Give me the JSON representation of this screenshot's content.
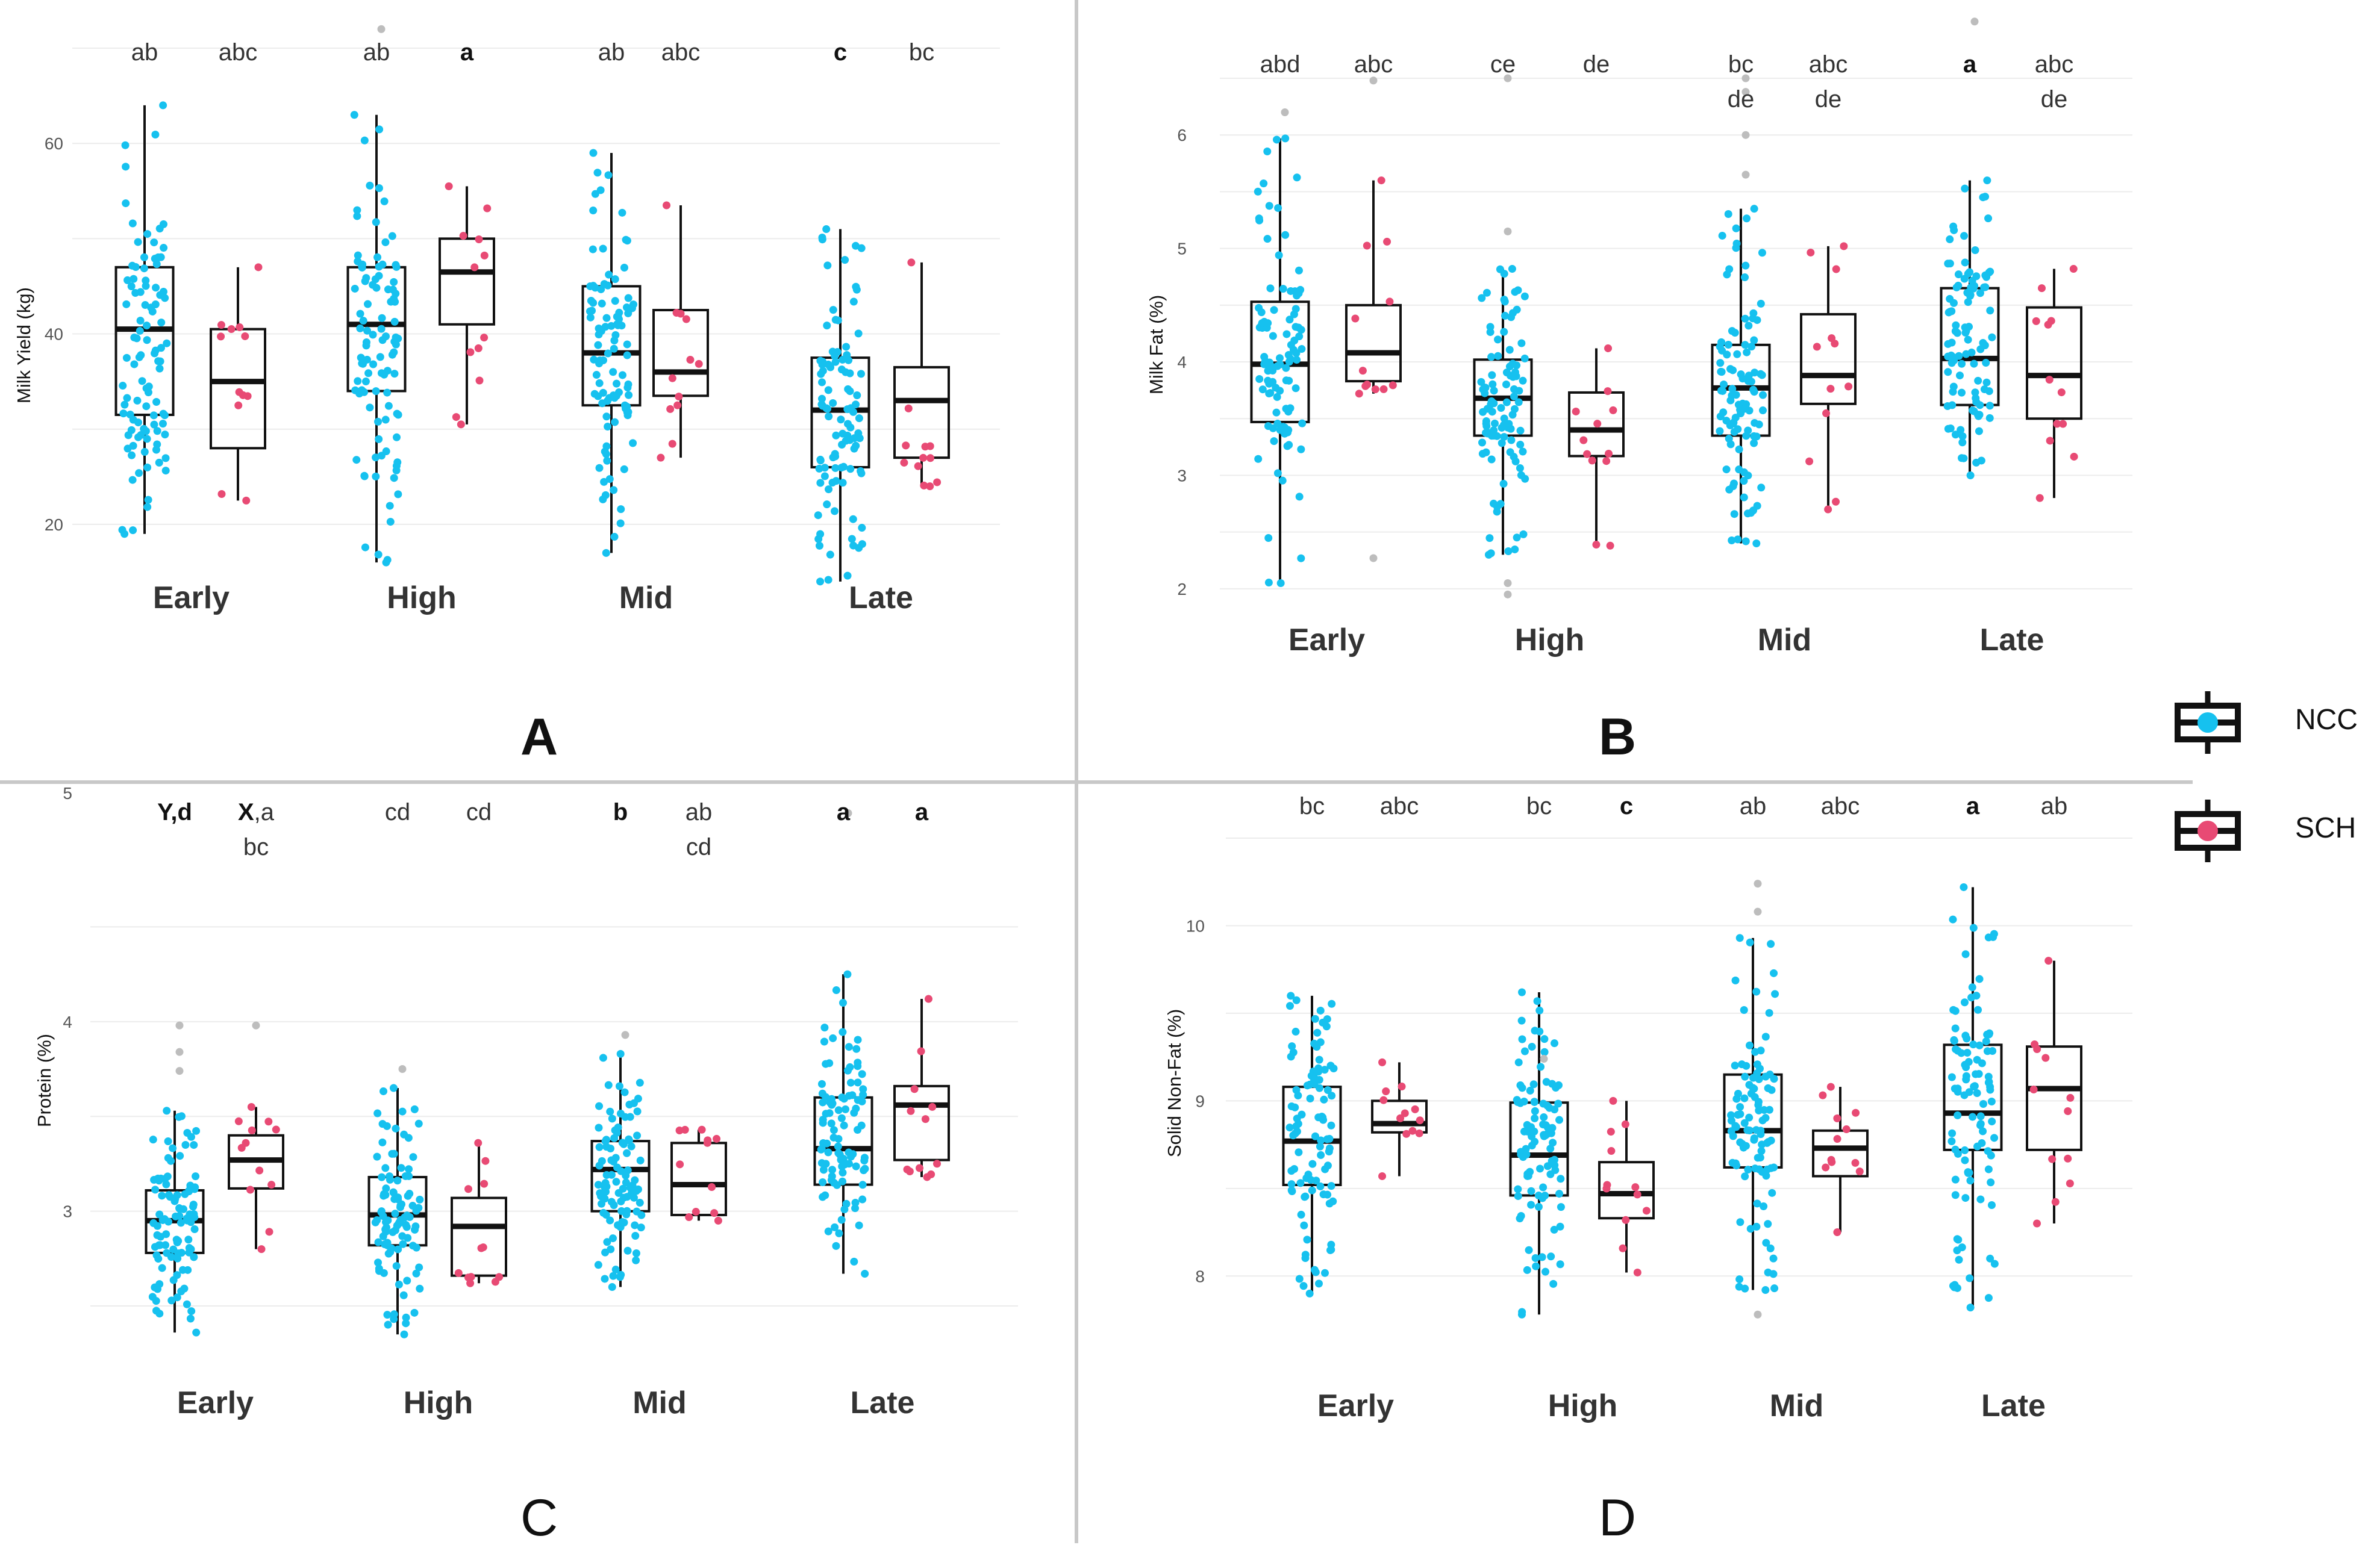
{
  "legend": {
    "items": [
      {
        "name": "NCC",
        "color": "#16c1ef"
      },
      {
        "name": "SCH",
        "color": "#e84a74"
      }
    ]
  },
  "colors": {
    "ncc": "#16c1ef",
    "sch": "#e84a74",
    "outlier": "#bdbdbd",
    "grid": "#ececec",
    "box": "#111111"
  },
  "chart_data": [
    {
      "panel": "A",
      "type": "boxplot",
      "ylabel": "Milk Yield (kg)",
      "ylim": [
        15,
        70
      ],
      "yticks": [
        20,
        40,
        60
      ],
      "categories": [
        "Early",
        "High",
        "Mid",
        "Late"
      ],
      "series": [
        {
          "name": "NCC",
          "boxes": [
            {
              "min": 19,
              "q1": 31.5,
              "median": 40.5,
              "q3": 47,
              "max": 64
            },
            {
              "min": 16,
              "q1": 34,
              "median": 41,
              "q3": 47,
              "max": 63
            },
            {
              "min": 17,
              "q1": 32.5,
              "median": 38,
              "q3": 45,
              "max": 59
            },
            {
              "min": 14,
              "q1": 26,
              "median": 32,
              "q3": 37.5,
              "max": 51
            }
          ]
        },
        {
          "name": "SCH",
          "boxes": [
            {
              "min": 22.5,
              "q1": 28,
              "median": 35,
              "q3": 40.5,
              "max": 47
            },
            {
              "min": 30.5,
              "q1": 41,
              "median": 46.5,
              "q3": 50,
              "max": 55.5
            },
            {
              "min": 27,
              "q1": 33.5,
              "median": 36,
              "q3": 42.5,
              "max": 53.5
            },
            {
              "min": 24,
              "q1": 27,
              "median": 33,
              "q3": 36.5,
              "max": 47.5
            }
          ]
        }
      ],
      "outliers": [
        {
          "category": "High",
          "series": "NCC",
          "value": 72
        }
      ],
      "letters": [
        [
          {
            "t": "ab",
            "b": ""
          },
          {
            "t": "abc",
            "b": ""
          }
        ],
        [
          {
            "t": "ab",
            "b": ""
          },
          {
            "t": "",
            "b": "a"
          }
        ],
        [
          {
            "t": "ab",
            "b": ""
          },
          {
            "t": "abc",
            "b": ""
          }
        ],
        [
          {
            "t": "",
            "b": "c"
          },
          {
            "t": "bc",
            "b": ""
          }
        ]
      ]
    },
    {
      "panel": "B",
      "type": "boxplot",
      "ylabel": "Milk Fat (%)",
      "ylim": [
        1.75,
        6.5
      ],
      "yticks": [
        2,
        3,
        4,
        5,
        6
      ],
      "categories": [
        "Early",
        "High",
        "Mid",
        "Late"
      ],
      "series": [
        {
          "name": "NCC",
          "boxes": [
            {
              "min": 2.05,
              "q1": 3.47,
              "median": 3.98,
              "q3": 4.53,
              "max": 5.97
            },
            {
              "min": 2.3,
              "q1": 3.35,
              "median": 3.68,
              "q3": 4.02,
              "max": 4.82
            },
            {
              "min": 2.4,
              "q1": 3.35,
              "median": 3.77,
              "q3": 4.15,
              "max": 5.35
            },
            {
              "min": 3.0,
              "q1": 3.62,
              "median": 4.03,
              "q3": 4.65,
              "max": 5.6
            }
          ]
        },
        {
          "name": "SCH",
          "boxes": [
            {
              "min": 3.72,
              "q1": 3.83,
              "median": 4.08,
              "q3": 4.5,
              "max": 5.6
            },
            {
              "min": 2.38,
              "q1": 3.17,
              "median": 3.4,
              "q3": 3.73,
              "max": 4.12
            },
            {
              "min": 2.7,
              "q1": 3.63,
              "median": 3.88,
              "q3": 4.42,
              "max": 5.02
            },
            {
              "min": 2.8,
              "q1": 3.5,
              "median": 3.88,
              "q3": 4.48,
              "max": 4.82
            }
          ]
        }
      ],
      "outliers": [
        {
          "category": "Early",
          "series": "NCC",
          "value": 6.2
        },
        {
          "category": "Early",
          "series": "SCH",
          "value": 6.48
        },
        {
          "category": "Early",
          "series": "SCH",
          "value": 2.27
        },
        {
          "category": "High",
          "series": "NCC",
          "value": 6.5
        },
        {
          "category": "High",
          "series": "NCC",
          "value": 5.15
        },
        {
          "category": "High",
          "series": "NCC",
          "value": 2.05
        },
        {
          "category": "High",
          "series": "NCC",
          "value": 1.95
        },
        {
          "category": "Mid",
          "series": "NCC",
          "value": 6.5
        },
        {
          "category": "Mid",
          "series": "NCC",
          "value": 6.38
        },
        {
          "category": "Mid",
          "series": "NCC",
          "value": 6.0
        },
        {
          "category": "Mid",
          "series": "NCC",
          "value": 5.65
        },
        {
          "category": "Late",
          "series": "NCC",
          "value": 7.0
        }
      ],
      "letters": [
        [
          {
            "t": "abd",
            "b": ""
          },
          {
            "t": "abc",
            "b": ""
          }
        ],
        [
          {
            "t": "ce",
            "b": ""
          },
          {
            "t": "de",
            "b": ""
          }
        ],
        [
          {
            "t": "bc\nde",
            "b": ""
          },
          {
            "t": "abc\nde",
            "b": ""
          }
        ],
        [
          {
            "t": "",
            "b": "a"
          },
          {
            "t": "abc\nde",
            "b": ""
          }
        ]
      ]
    },
    {
      "panel": "C",
      "type": "boxplot",
      "ylabel": "Protein (%)",
      "ylim": [
        2.3,
        5.0
      ],
      "yticks": [
        3,
        4
      ],
      "top_tick_label": "5",
      "categories": [
        "Early",
        "High",
        "Mid",
        "Late"
      ],
      "series": [
        {
          "name": "NCC",
          "boxes": [
            {
              "min": 2.36,
              "q1": 2.78,
              "median": 2.95,
              "q3": 3.11,
              "max": 3.53
            },
            {
              "min": 2.35,
              "q1": 2.82,
              "median": 2.98,
              "q3": 3.18,
              "max": 3.65
            },
            {
              "min": 2.6,
              "q1": 3.0,
              "median": 3.22,
              "q3": 3.37,
              "max": 3.83
            },
            {
              "min": 2.67,
              "q1": 3.14,
              "median": 3.33,
              "q3": 3.6,
              "max": 4.25
            }
          ]
        },
        {
          "name": "SCH",
          "boxes": [
            {
              "min": 2.8,
              "q1": 3.12,
              "median": 3.27,
              "q3": 3.4,
              "max": 3.55
            },
            {
              "min": 2.62,
              "q1": 2.66,
              "median": 2.92,
              "q3": 3.07,
              "max": 3.36
            },
            {
              "min": 2.95,
              "q1": 2.98,
              "median": 3.14,
              "q3": 3.36,
              "max": 3.43
            },
            {
              "min": 3.18,
              "q1": 3.27,
              "median": 3.56,
              "q3": 3.66,
              "max": 4.12
            }
          ]
        }
      ],
      "outliers": [
        {
          "category": "Early",
          "series": "NCC",
          "value": 3.98
        },
        {
          "category": "Early",
          "series": "NCC",
          "value": 3.84
        },
        {
          "category": "Early",
          "series": "NCC",
          "value": 3.74
        },
        {
          "category": "Early",
          "series": "SCH",
          "value": 3.98
        },
        {
          "category": "High",
          "series": "NCC",
          "value": 3.75
        },
        {
          "category": "Mid",
          "series": "NCC",
          "value": 3.93
        },
        {
          "category": "Late",
          "series": "NCC",
          "value": 5.1
        }
      ],
      "letters": [
        [
          {
            "t": "",
            "b": "Y,d"
          },
          {
            "t": ",a\nbc",
            "b": "X"
          }
        ],
        [
          {
            "t": "cd",
            "b": ""
          },
          {
            "t": "cd",
            "b": ""
          }
        ],
        [
          {
            "t": "",
            "b": "b"
          },
          {
            "t": "ab\ncd",
            "b": ""
          }
        ],
        [
          {
            "t": "",
            "b": "a"
          },
          {
            "t": "",
            "b": "a"
          }
        ]
      ]
    },
    {
      "panel": "D",
      "type": "boxplot",
      "ylabel": "Solid Non-Fat (%)",
      "ylim": [
        7.75,
        10.5
      ],
      "yticks": [
        8,
        9,
        10
      ],
      "categories": [
        "Early",
        "High",
        "Mid",
        "Late"
      ],
      "series": [
        {
          "name": "NCC",
          "boxes": [
            {
              "min": 7.9,
              "q1": 8.52,
              "median": 8.77,
              "q3": 9.08,
              "max": 9.6
            },
            {
              "min": 7.78,
              "q1": 8.46,
              "median": 8.69,
              "q3": 8.99,
              "max": 9.62
            },
            {
              "min": 7.92,
              "q1": 8.62,
              "median": 8.83,
              "q3": 9.15,
              "max": 9.93
            },
            {
              "min": 7.82,
              "q1": 8.72,
              "median": 8.93,
              "q3": 9.32,
              "max": 10.22
            }
          ]
        },
        {
          "name": "SCH",
          "boxes": [
            {
              "min": 8.57,
              "q1": 8.82,
              "median": 8.87,
              "q3": 9.0,
              "max": 9.22
            },
            {
              "min": 8.02,
              "q1": 8.33,
              "median": 8.47,
              "q3": 8.65,
              "max": 9.0
            },
            {
              "min": 8.25,
              "q1": 8.57,
              "median": 8.73,
              "q3": 8.83,
              "max": 9.08
            },
            {
              "min": 8.3,
              "q1": 8.72,
              "median": 9.07,
              "q3": 9.31,
              "max": 9.8
            }
          ]
        }
      ],
      "outliers": [
        {
          "category": "High",
          "series": "NCC",
          "value": 9.24
        },
        {
          "category": "Mid",
          "series": "NCC",
          "value": 10.24
        },
        {
          "category": "Mid",
          "series": "NCC",
          "value": 10.08
        },
        {
          "category": "Mid",
          "series": "NCC",
          "value": 7.78
        }
      ],
      "letters": [
        [
          {
            "t": "bc",
            "b": ""
          },
          {
            "t": "abc",
            "b": ""
          }
        ],
        [
          {
            "t": "bc",
            "b": ""
          },
          {
            "t": "",
            "b": "c"
          }
        ],
        [
          {
            "t": "ab",
            "b": ""
          },
          {
            "t": "abc",
            "b": ""
          }
        ],
        [
          {
            "t": "",
            "b": "a"
          },
          {
            "t": "ab",
            "b": ""
          }
        ]
      ]
    }
  ]
}
